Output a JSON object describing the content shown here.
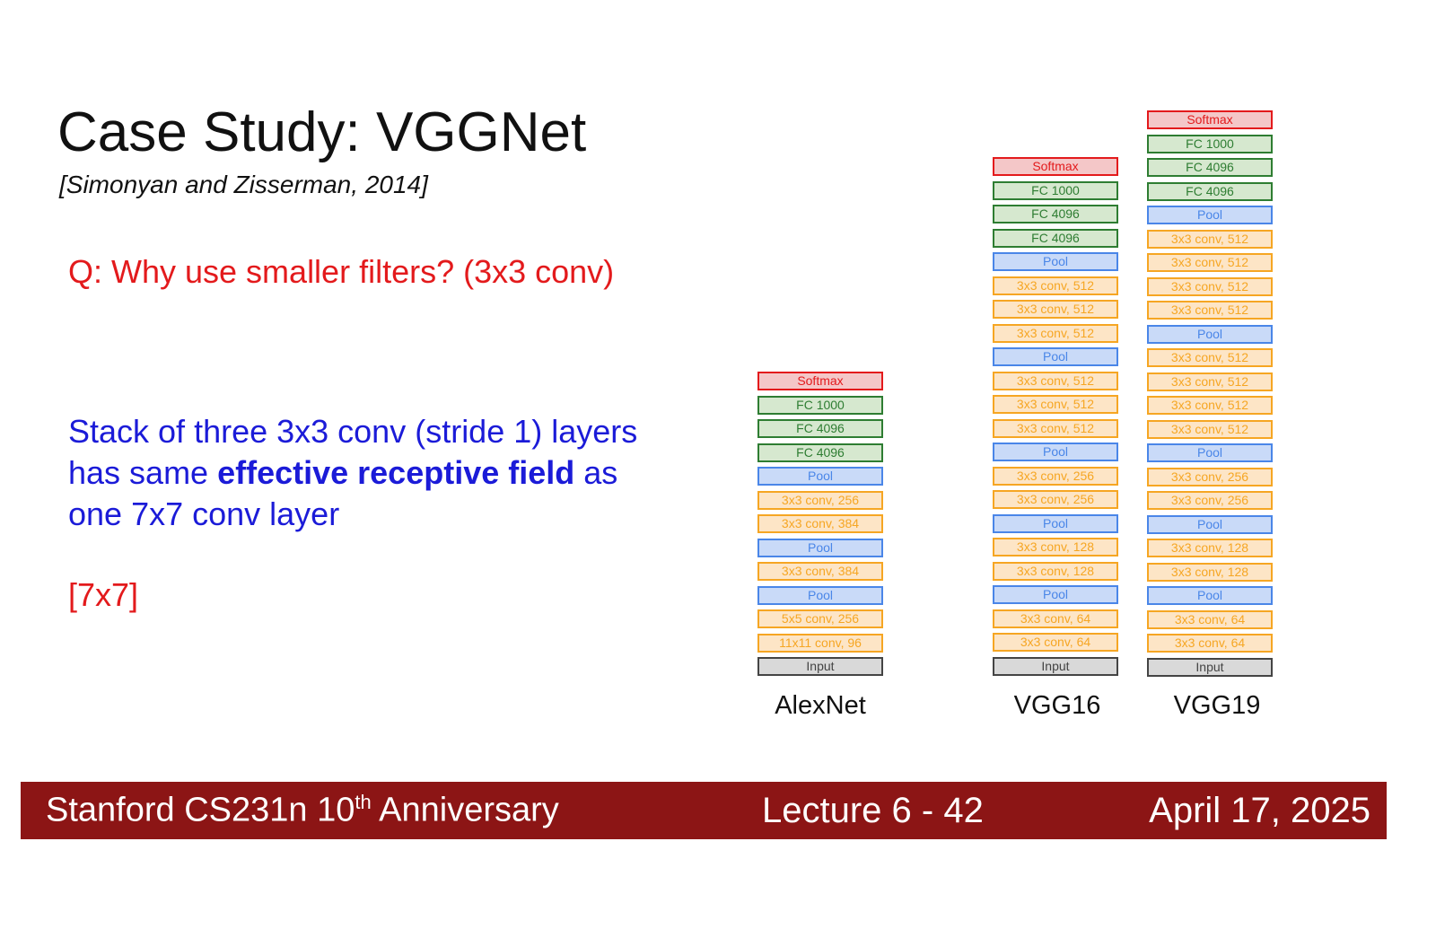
{
  "slide": {
    "title": "Case Study: VGGNet",
    "citation": "[Simonyan and Zisserman, 2014]",
    "question": "Q: Why use smaller filters? (3x3 conv)",
    "body_line1": "Stack of three 3x3 conv (stride 1) layers",
    "body_line2_pre": "has same ",
    "body_line2_bold": "effective receptive field",
    "body_line2_post": " as",
    "body_line3": "one 7x7 conv layer",
    "answer": "[7x7]"
  },
  "layer_styles": {
    "softmax": {
      "border": "#e31a1c",
      "fill": "#f4c7c8",
      "text": "#e31a1c"
    },
    "fc": {
      "border": "#2e7d32",
      "fill": "#d6e8cf",
      "text": "#2e7d32"
    },
    "pool": {
      "border": "#4a86e8",
      "fill": "#c9daf8",
      "text": "#4a86e8"
    },
    "conv": {
      "border": "#f6a623",
      "fill": "#fde5c6",
      "text": "#f6a623"
    },
    "input": {
      "border": "#444444",
      "fill": "#d9d9d9",
      "text": "#444444"
    }
  },
  "networks": [
    {
      "name": "AlexNet",
      "layers": [
        {
          "label": "Softmax",
          "kind": "softmax"
        },
        {
          "label": "FC 1000",
          "kind": "fc"
        },
        {
          "label": "FC 4096",
          "kind": "fc"
        },
        {
          "label": "FC 4096",
          "kind": "fc"
        },
        {
          "label": "Pool",
          "kind": "pool"
        },
        {
          "label": "3x3 conv, 256",
          "kind": "conv"
        },
        {
          "label": "3x3 conv, 384",
          "kind": "conv"
        },
        {
          "label": "Pool",
          "kind": "pool"
        },
        {
          "label": "3x3 conv, 384",
          "kind": "conv"
        },
        {
          "label": "Pool",
          "kind": "pool"
        },
        {
          "label": "5x5 conv, 256",
          "kind": "conv"
        },
        {
          "label": "11x11 conv, 96",
          "kind": "conv"
        },
        {
          "label": "Input",
          "kind": "input"
        }
      ]
    },
    {
      "name": "VGG16",
      "layers": [
        {
          "label": "Softmax",
          "kind": "softmax"
        },
        {
          "label": "FC 1000",
          "kind": "fc"
        },
        {
          "label": "FC 4096",
          "kind": "fc"
        },
        {
          "label": "FC 4096",
          "kind": "fc"
        },
        {
          "label": "Pool",
          "kind": "pool"
        },
        {
          "label": "3x3 conv, 512",
          "kind": "conv"
        },
        {
          "label": "3x3 conv, 512",
          "kind": "conv"
        },
        {
          "label": "3x3 conv, 512",
          "kind": "conv"
        },
        {
          "label": "Pool",
          "kind": "pool"
        },
        {
          "label": "3x3 conv, 512",
          "kind": "conv"
        },
        {
          "label": "3x3 conv, 512",
          "kind": "conv"
        },
        {
          "label": "3x3 conv, 512",
          "kind": "conv"
        },
        {
          "label": "Pool",
          "kind": "pool"
        },
        {
          "label": "3x3 conv, 256",
          "kind": "conv"
        },
        {
          "label": "3x3 conv, 256",
          "kind": "conv"
        },
        {
          "label": "Pool",
          "kind": "pool"
        },
        {
          "label": "3x3 conv, 128",
          "kind": "conv"
        },
        {
          "label": "3x3 conv, 128",
          "kind": "conv"
        },
        {
          "label": "Pool",
          "kind": "pool"
        },
        {
          "label": "3x3 conv, 64",
          "kind": "conv"
        },
        {
          "label": "3x3 conv, 64",
          "kind": "conv"
        },
        {
          "label": "Input",
          "kind": "input"
        }
      ]
    },
    {
      "name": "VGG19",
      "layers": [
        {
          "label": "Softmax",
          "kind": "softmax"
        },
        {
          "label": "FC 1000",
          "kind": "fc"
        },
        {
          "label": "FC 4096",
          "kind": "fc"
        },
        {
          "label": "FC 4096",
          "kind": "fc"
        },
        {
          "label": "Pool",
          "kind": "pool"
        },
        {
          "label": "3x3 conv, 512",
          "kind": "conv"
        },
        {
          "label": "3x3 conv, 512",
          "kind": "conv"
        },
        {
          "label": "3x3 conv, 512",
          "kind": "conv"
        },
        {
          "label": "3x3 conv, 512",
          "kind": "conv"
        },
        {
          "label": "Pool",
          "kind": "pool"
        },
        {
          "label": "3x3 conv, 512",
          "kind": "conv"
        },
        {
          "label": "3x3 conv, 512",
          "kind": "conv"
        },
        {
          "label": "3x3 conv, 512",
          "kind": "conv"
        },
        {
          "label": "3x3 conv, 512",
          "kind": "conv"
        },
        {
          "label": "Pool",
          "kind": "pool"
        },
        {
          "label": "3x3 conv, 256",
          "kind": "conv"
        },
        {
          "label": "3x3 conv, 256",
          "kind": "conv"
        },
        {
          "label": "Pool",
          "kind": "pool"
        },
        {
          "label": "3x3 conv, 128",
          "kind": "conv"
        },
        {
          "label": "3x3 conv, 128",
          "kind": "conv"
        },
        {
          "label": "Pool",
          "kind": "pool"
        },
        {
          "label": "3x3 conv, 64",
          "kind": "conv"
        },
        {
          "label": "3x3 conv, 64",
          "kind": "conv"
        },
        {
          "label": "Input",
          "kind": "input"
        }
      ]
    }
  ],
  "footer": {
    "course_pre": "Stanford CS231n 10",
    "course_sup": "th",
    "course_post": " Anniversary",
    "lecture": "Lecture 6 -  42",
    "date": "April 17, 2025",
    "background": "#8c1515"
  }
}
